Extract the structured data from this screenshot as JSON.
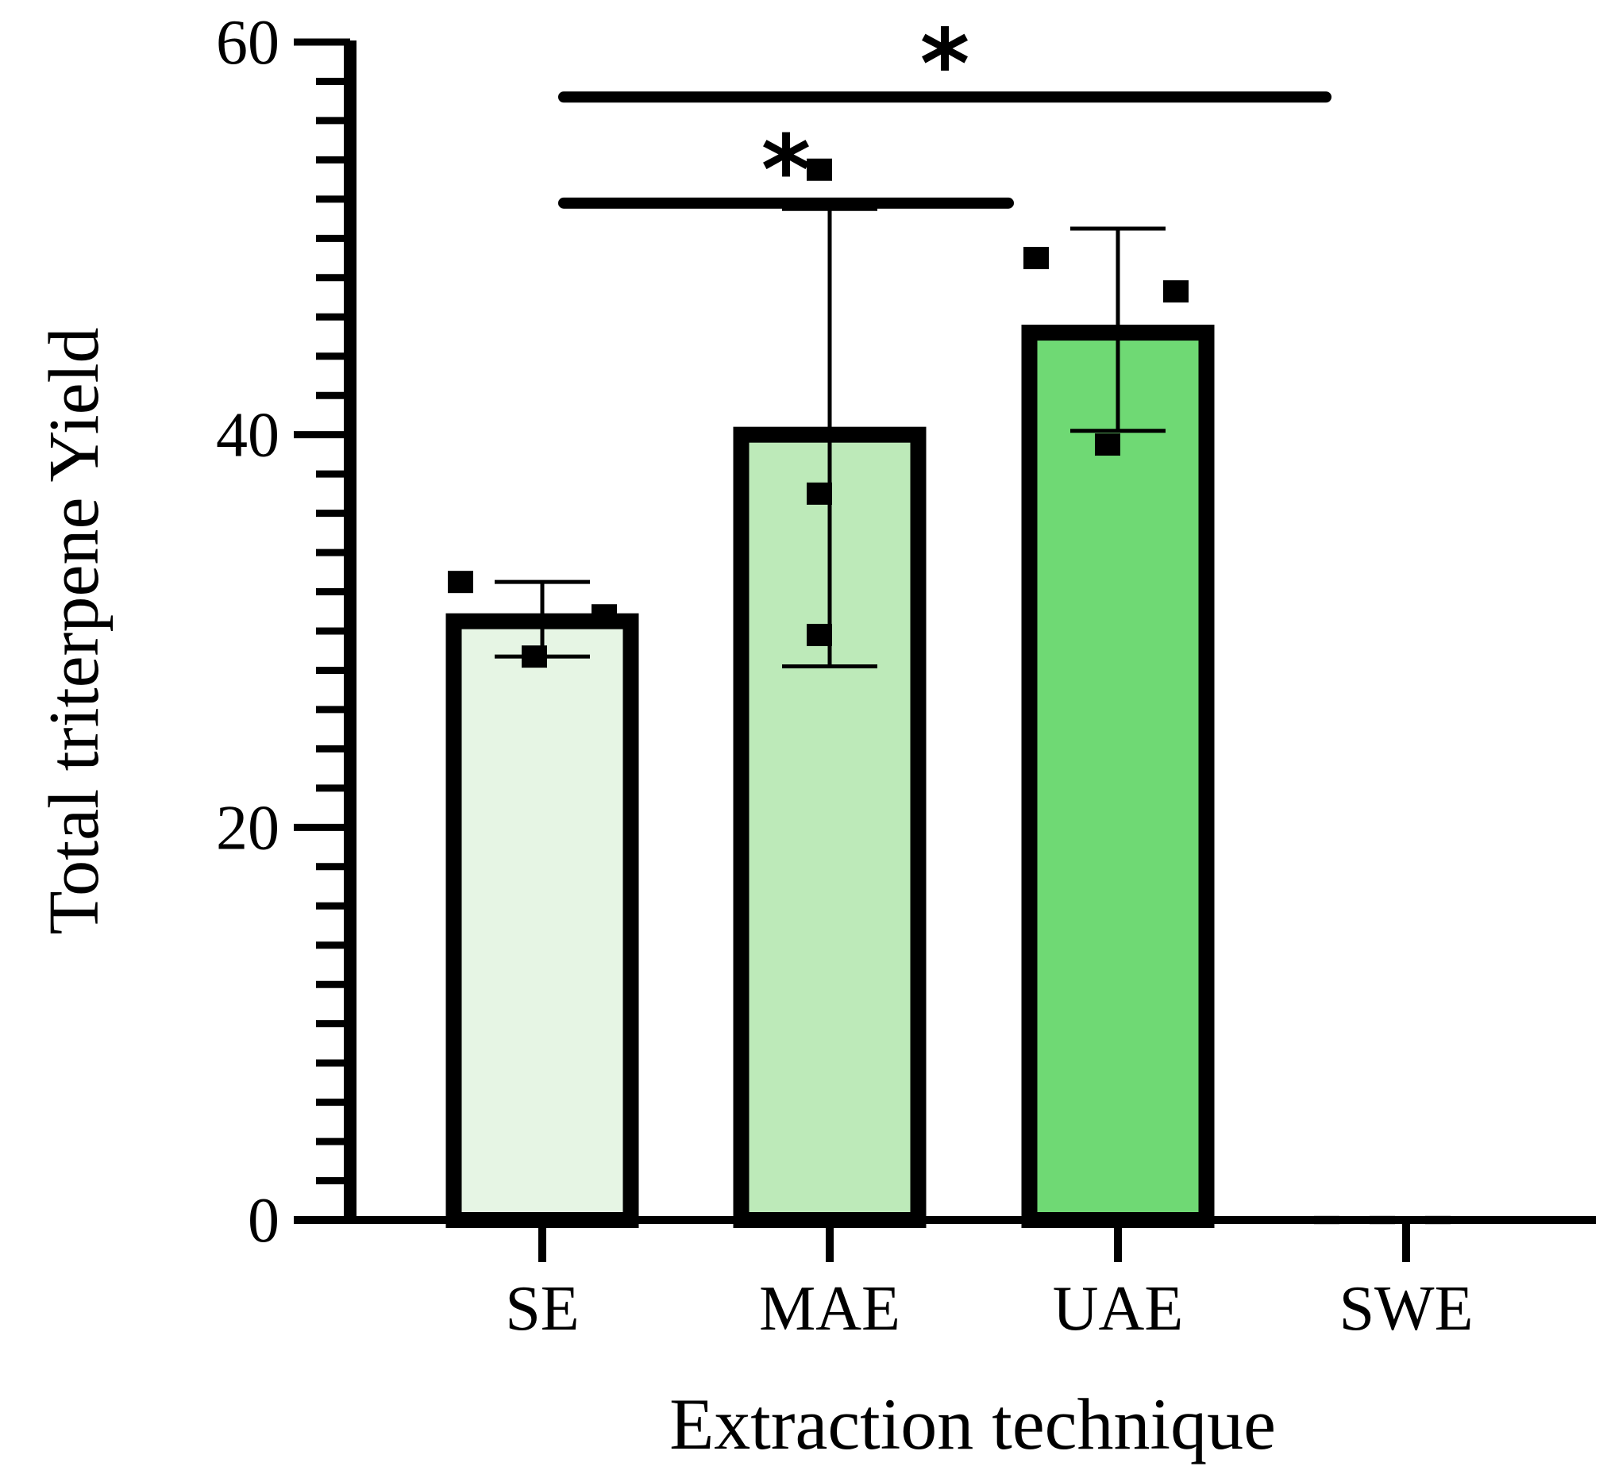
{
  "chart_data": {
    "type": "bar",
    "title": "",
    "xlabel": "Extraction technique",
    "ylabel": "Total triterpene Yield",
    "ylim": [
      0,
      60
    ],
    "yticks": [
      {
        "value": 0,
        "label": "0"
      },
      {
        "value": 20,
        "label": "20"
      },
      {
        "value": 40,
        "label": "40"
      },
      {
        "value": 60,
        "label": "60"
      }
    ],
    "y_minor_step": 2,
    "grid": false,
    "categories": [
      "SE",
      "MAE",
      "UAE",
      "SWE"
    ],
    "values": [
      30.5,
      40.0,
      45.2,
      0
    ],
    "error_upper": [
      32.5,
      51.5,
      50.5,
      0
    ],
    "error_lower": [
      28.7,
      28.2,
      40.2,
      0
    ],
    "points": [
      [
        32.5,
        28.7,
        30.8
      ],
      [
        53.5,
        37.0,
        29.8
      ],
      [
        49.0,
        39.5,
        47.3
      ],
      [
        0,
        0,
        0
      ]
    ],
    "colors": [
      "#e6f5e4",
      "#bdeab9",
      "#6fd974",
      "#ffffff"
    ],
    "point_colors": [
      "#000000",
      "#000000",
      "#000000",
      "#cccccc"
    ],
    "significance": [
      {
        "from": "SE",
        "to": "MAE",
        "label": "*",
        "y": 51.8
      },
      {
        "from": "SE",
        "to": "SWE",
        "label": "*",
        "y": 57.2
      }
    ]
  }
}
